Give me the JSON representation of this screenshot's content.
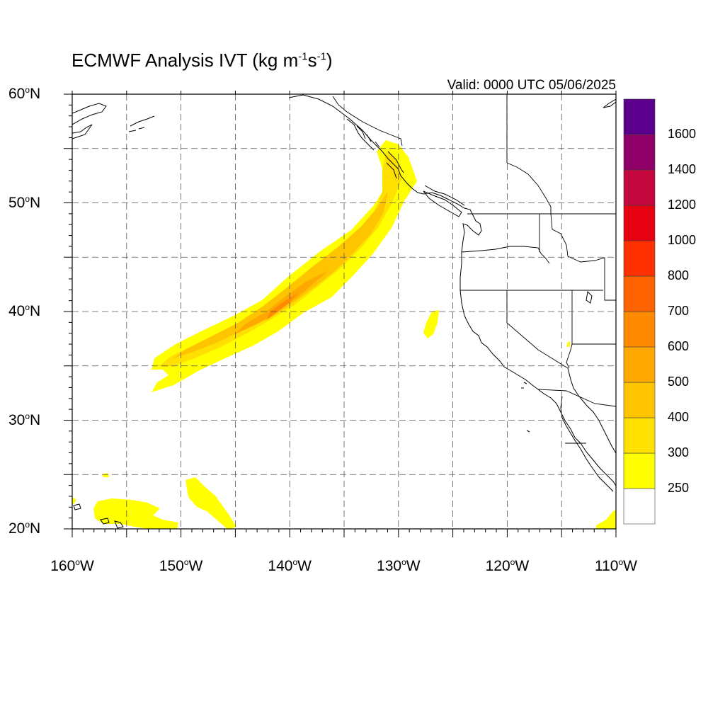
{
  "title": {
    "text": "ECMWF Analysis IVT (kg m",
    "exp1": "-1",
    "mid": "s",
    "exp2": "-1",
    "end": ")"
  },
  "valid_label": "Valid: 0000 UTC 05/06/2025",
  "degree_mark": "o",
  "map": {
    "projection": "cylindrical equidistant",
    "lon_range": [
      -160,
      -110
    ],
    "lat_range": [
      20,
      60
    ],
    "gridlines": "dashed every 5 degrees",
    "lat_ticks": [
      {
        "value": 60,
        "num": "60",
        "hemi": "N"
      },
      {
        "value": 50,
        "num": "50",
        "hemi": "N"
      },
      {
        "value": 40,
        "num": "40",
        "hemi": "N"
      },
      {
        "value": 30,
        "num": "30",
        "hemi": "N"
      },
      {
        "value": 20,
        "num": "20",
        "hemi": "N"
      }
    ],
    "lon_ticks": [
      {
        "value": -160,
        "num": "160",
        "hemi": "W"
      },
      {
        "value": -150,
        "num": "150",
        "hemi": "W"
      },
      {
        "value": -140,
        "num": "140",
        "hemi": "W"
      },
      {
        "value": -130,
        "num": "130",
        "hemi": "W"
      },
      {
        "value": -120,
        "num": "120",
        "hemi": "W"
      },
      {
        "value": -110,
        "num": "110",
        "hemi": "W"
      }
    ],
    "ivt_features": [
      {
        "name": "atmospheric-river",
        "description": "plume from about 152W 33N to 130W 55N, max 500-600 near 140W 40N"
      },
      {
        "name": "hawaii-patches",
        "description": "IVT 250-300 near 20-25N, 160-145W"
      },
      {
        "name": "small-offshore-patch",
        "description": "IVT 250-300 near 127W 38.5N"
      },
      {
        "name": "baja-patch",
        "description": "IVT 250-300 near 111W 21N"
      }
    ]
  },
  "colorbar": {
    "levels": [
      "250",
      "300",
      "400",
      "500",
      "600",
      "700",
      "800",
      "1000",
      "1200",
      "1400",
      "1600"
    ],
    "colors": [
      "#ffffff",
      "#ffff00",
      "#ffe000",
      "#ffc400",
      "#ffa800",
      "#ff8a00",
      "#ff6200",
      "#ff3000",
      "#e60012",
      "#c4073f",
      "#8f0068",
      "#5a008c"
    ]
  }
}
